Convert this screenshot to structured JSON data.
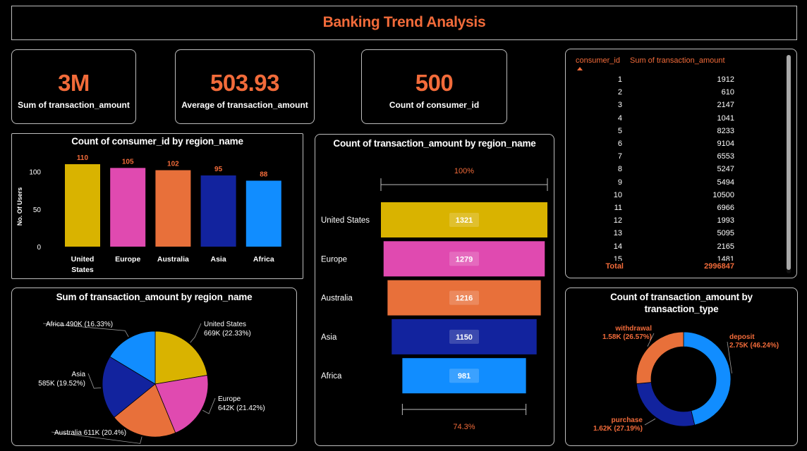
{
  "dashboard": {
    "title": "Banking Trend Analysis"
  },
  "cards": [
    {
      "value": "3M",
      "label": "Sum of transaction_amount"
    },
    {
      "value": "503.93",
      "label": "Average of transaction_amount"
    },
    {
      "value": "500",
      "label": "Count of consumer_id"
    }
  ],
  "colors": {
    "accent": "#f26b3a",
    "united_states": "#d9b300",
    "europe": "#e04ab0",
    "australia": "#e8703a",
    "asia": "#12239e",
    "africa": "#118dff"
  },
  "table": {
    "col1": "consumer_id",
    "col2": "Sum of transaction_amount",
    "sort_icon": "sort-ascending-icon",
    "rows": [
      {
        "id": "1",
        "amount": "1912"
      },
      {
        "id": "2",
        "amount": "610"
      },
      {
        "id": "3",
        "amount": "2147"
      },
      {
        "id": "4",
        "amount": "1041"
      },
      {
        "id": "5",
        "amount": "8233"
      },
      {
        "id": "6",
        "amount": "9104"
      },
      {
        "id": "7",
        "amount": "6553"
      },
      {
        "id": "8",
        "amount": "5247"
      },
      {
        "id": "9",
        "amount": "5494"
      },
      {
        "id": "10",
        "amount": "10500"
      },
      {
        "id": "11",
        "amount": "6966"
      },
      {
        "id": "12",
        "amount": "1993"
      },
      {
        "id": "13",
        "amount": "5095"
      },
      {
        "id": "14",
        "amount": "2165"
      },
      {
        "id": "15",
        "amount": "1481"
      }
    ],
    "total_label": "Total",
    "total_value": "2996847"
  },
  "chart_data": [
    {
      "type": "bar",
      "title": "Count of consumer_id by region_name",
      "ylabel": "No. Of Users",
      "xlabel": "",
      "categories": [
        "United States",
        "Europe",
        "Australia",
        "Asia",
        "Africa"
      ],
      "category_lines": [
        [
          "United",
          "States"
        ],
        [
          "Europe"
        ],
        [
          "Australia"
        ],
        [
          "Asia"
        ],
        [
          "Africa"
        ]
      ],
      "values": [
        110,
        105,
        102,
        95,
        88
      ],
      "yticks": [
        "0",
        "50",
        "100"
      ],
      "ylim": [
        0,
        110
      ]
    },
    {
      "type": "pie",
      "title": "Sum of transaction_amount by region_name",
      "categories": [
        "United States",
        "Europe",
        "Australia",
        "Asia",
        "Africa"
      ],
      "values": [
        669,
        642,
        611,
        585,
        490
      ],
      "percent": [
        22.33,
        21.42,
        20.4,
        19.52,
        16.33
      ],
      "labels": [
        [
          "United States",
          "669K (22.33%)"
        ],
        [
          "Europe",
          "642K (21.42%)"
        ],
        [
          "Australia 611K (20.4%)"
        ],
        [
          "Asia",
          "585K (19.52%)"
        ],
        [
          "Africa 490K (16.33%)"
        ]
      ]
    },
    {
      "type": "bar",
      "subtype": "funnel",
      "title": "Count of transaction_amount by region_name",
      "categories": [
        "United States",
        "Europe",
        "Australia",
        "Asia",
        "Africa"
      ],
      "values": [
        1321,
        1279,
        1216,
        1150,
        981
      ],
      "top_label": "100%",
      "bottom_label": "74.3%"
    },
    {
      "type": "pie",
      "subtype": "donut",
      "title": "Count of transaction_amount by transaction_type",
      "title_lines": [
        "Count of transaction_amount by",
        "transaction_type"
      ],
      "categories": [
        "deposit",
        "purchase",
        "withdrawal"
      ],
      "values": [
        2.75,
        1.62,
        1.58
      ],
      "percent": [
        46.24,
        27.19,
        26.57
      ],
      "value_labels": [
        "2.75K (46.24%)",
        "1.62K (27.19%)",
        "1.58K (26.57%)"
      ],
      "colors": [
        "#118dff",
        "#12239e",
        "#e8703a"
      ]
    }
  ]
}
